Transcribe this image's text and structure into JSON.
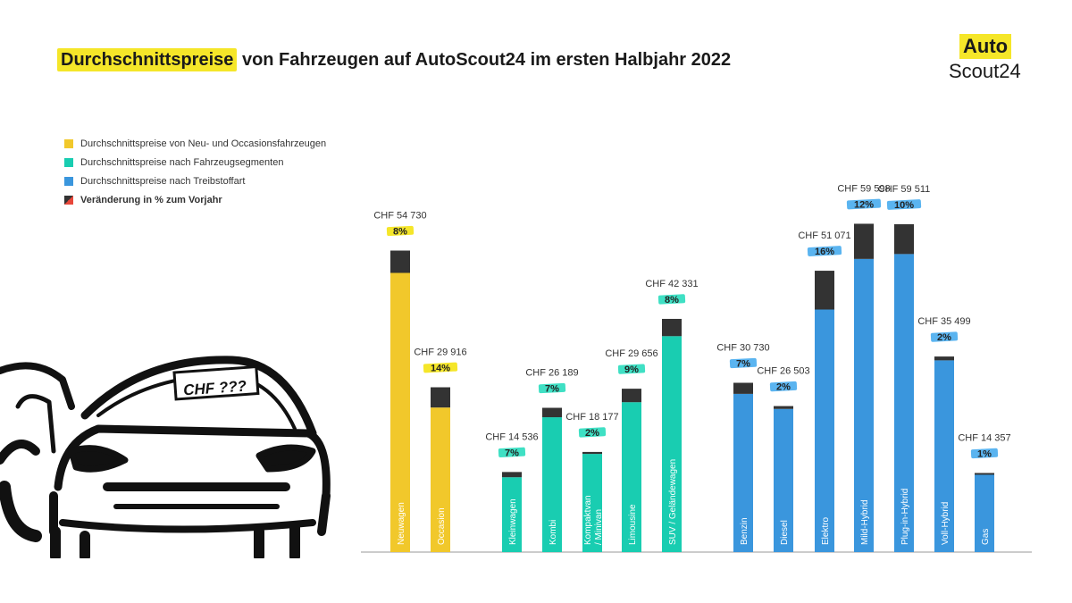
{
  "title": {
    "highlight": "Durchschnittspreise",
    "rest": " von Fahrzeugen auf AutoScout24 im ersten Halbjahr 2022"
  },
  "logo": {
    "line1": "Auto",
    "line2": "Scout24"
  },
  "legend": [
    {
      "label": "Durchschnittspreise von Neu- und Occasionsfahrzeugen",
      "color": "#f1c82b"
    },
    {
      "label": "Durchschnittspreise nach Fahrzeugsegmenten",
      "color": "#19cdb1"
    },
    {
      "label": "Durchschnittspreise nach Treibstoffart",
      "color": "#3a96dd"
    },
    {
      "label": "Veränderung in % zum Vorjahr",
      "color": "#333333"
    }
  ],
  "car_sign": "CHF ???",
  "colors": {
    "yellow": "#f1c82b",
    "teal": "#19cdb1",
    "blue": "#3a96dd",
    "change": "#333333",
    "tag_yellow": "#f5e629",
    "tag_teal": "#3fe0c4",
    "tag_blue": "#5ab4f0"
  },
  "chart_data": {
    "type": "bar",
    "title": "Durchschnittspreise von Fahrzeugen auf AutoScout24 im ersten Halbjahr 2022",
    "ylim": [
      0,
      70000
    ],
    "groups": [
      {
        "name": "Durchschnittspreise von Neu- und Occasionsfahrzeugen",
        "color_key": "yellow",
        "bars": [
          {
            "category": "Neuwagen",
            "value": 54730,
            "value_label": "CHF 54 730",
            "change": 8,
            "change_label": "8%"
          },
          {
            "category": "Occasion",
            "value": 29916,
            "value_label": "CHF 29 916",
            "change": 14,
            "change_label": "14%"
          }
        ]
      },
      {
        "name": "Durchschnittspreise nach Fahrzeugsegmenten",
        "color_key": "teal",
        "bars": [
          {
            "category": "Kleinwagen",
            "value": 14536,
            "value_label": "CHF 14 536",
            "change": 7,
            "change_label": "7%"
          },
          {
            "category": "Kombi",
            "value": 26189,
            "value_label": "CHF 26 189",
            "change": 7,
            "change_label": "7%"
          },
          {
            "category": "Kompaktvan / Minivan",
            "value": 18177,
            "value_label": "CHF 18 177",
            "change": 2,
            "change_label": "2%"
          },
          {
            "category": "Limousine",
            "value": 29656,
            "value_label": "CHF 29 656",
            "change": 9,
            "change_label": "9%"
          },
          {
            "category": "SUV / Geländewagen",
            "value": 42331,
            "value_label": "CHF 42 331",
            "change": 8,
            "change_label": "8%"
          }
        ]
      },
      {
        "name": "Durchschnittspreise nach Treibstoffart",
        "color_key": "blue",
        "bars": [
          {
            "category": "Benzin",
            "value": 30730,
            "value_label": "CHF 30 730",
            "change": 7,
            "change_label": "7%"
          },
          {
            "category": "Diesel",
            "value": 26503,
            "value_label": "CHF 26 503",
            "change": 2,
            "change_label": "2%"
          },
          {
            "category": "Elektro",
            "value": 51071,
            "value_label": "CHF 51 071",
            "change": 16,
            "change_label": "16%"
          },
          {
            "category": "Mild-Hybrid",
            "value": 59598,
            "value_label": "CHF 59 598",
            "change": 12,
            "change_label": "12%"
          },
          {
            "category": "Plug-in-Hybrid",
            "value": 59511,
            "value_label": "CHF 59 511",
            "change": 10,
            "change_label": "10%"
          },
          {
            "category": "Voll-Hybrid",
            "value": 35499,
            "value_label": "CHF 35 499",
            "change": 2,
            "change_label": "2%"
          },
          {
            "category": "Gas",
            "value": 14357,
            "value_label": "CHF 14 357",
            "change": 1,
            "change_label": "1%"
          }
        ]
      }
    ]
  }
}
